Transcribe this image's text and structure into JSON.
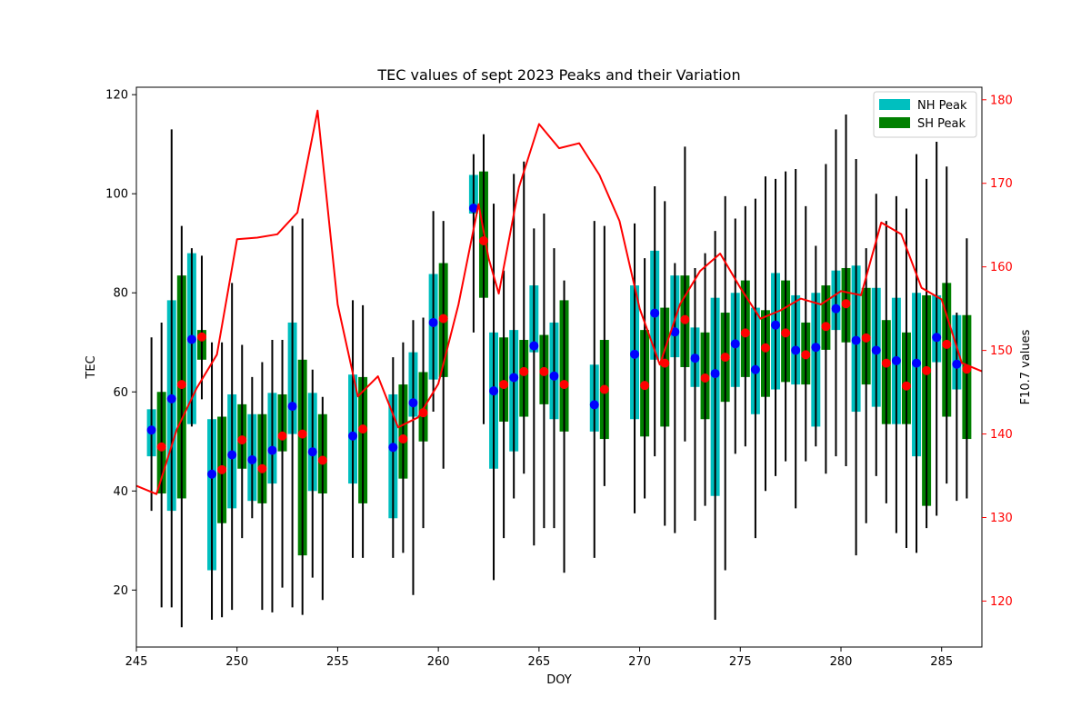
{
  "chart_data": {
    "type": "bar",
    "title": "TEC values of sept 2023 Peaks and their Variation",
    "xlabel": "DOY",
    "ylabel": "TEC",
    "y2label": "F10.7 values",
    "xlim": [
      245,
      287
    ],
    "ylim": [
      8.5,
      121.5
    ],
    "y2lim": [
      114.5,
      181.5
    ],
    "x_ticks": [
      245,
      250,
      255,
      260,
      265,
      270,
      275,
      280,
      285
    ],
    "y_ticks": [
      20,
      40,
      60,
      80,
      100,
      120
    ],
    "y2_ticks": [
      120,
      130,
      140,
      150,
      160,
      170,
      180
    ],
    "legend_position": "upper-right",
    "colors": {
      "nh": "#00bfbf",
      "sh": "#008000",
      "nh_point": "#0000ff",
      "sh_point": "#ff0000",
      "f107": "#ff0000",
      "whisker": "#000000"
    },
    "series": [
      {
        "name": "NH Peak",
        "offset": -0.25,
        "boxes": [
          {
            "x": 246,
            "low": 47,
            "high": 56.5,
            "mean": 52.3,
            "wlow": 36,
            "whigh": 71
          },
          {
            "x": 247,
            "low": 36,
            "high": 78.5,
            "mean": 58.6,
            "wlow": 16.5,
            "whigh": 113
          },
          {
            "x": 248,
            "low": 53.5,
            "high": 88,
            "mean": 70.6,
            "wlow": 53,
            "whigh": 89
          },
          {
            "x": 249,
            "low": 24,
            "high": 54.5,
            "mean": 43.4,
            "wlow": 14,
            "whigh": 70
          },
          {
            "x": 250,
            "low": 36.5,
            "high": 59.5,
            "mean": 47.3,
            "wlow": 16,
            "whigh": 82
          },
          {
            "x": 251,
            "low": 38,
            "high": 55.5,
            "mean": 46.3,
            "wlow": 34.5,
            "whigh": 63
          },
          {
            "x": 252,
            "low": 41.5,
            "high": 59.8,
            "mean": 48.2,
            "wlow": 15.5,
            "whigh": 70.5
          },
          {
            "x": 253,
            "low": 51.5,
            "high": 74,
            "mean": 57.1,
            "wlow": 16.5,
            "whigh": 93.5
          },
          {
            "x": 254,
            "low": 40,
            "high": 59.8,
            "mean": 47.9,
            "wlow": 22.5,
            "whigh": 64.5
          },
          {
            "x": 256,
            "low": 41.5,
            "high": 63.5,
            "mean": 51.1,
            "wlow": 26.5,
            "whigh": 78.5
          },
          {
            "x": 258,
            "low": 34.5,
            "high": 59.5,
            "mean": 48.8,
            "wlow": 26.5,
            "whigh": 67
          },
          {
            "x": 259,
            "low": 55,
            "high": 68,
            "mean": 57.8,
            "wlow": 19,
            "whigh": 74.5
          },
          {
            "x": 260,
            "low": 62.5,
            "high": 83.8,
            "mean": 74,
            "wlow": 56,
            "whigh": 96.5
          },
          {
            "x": 262,
            "low": 96,
            "high": 103.8,
            "mean": 97.1,
            "wlow": 72,
            "whigh": 108
          },
          {
            "x": 263,
            "low": 44.5,
            "high": 72,
            "mean": 60.2,
            "wlow": 22,
            "whigh": 98
          },
          {
            "x": 264,
            "low": 48,
            "high": 72.5,
            "mean": 62.9,
            "wlow": 38.5,
            "whigh": 104
          },
          {
            "x": 265,
            "low": 68,
            "high": 81.5,
            "mean": 69.3,
            "wlow": 29,
            "whigh": 93
          },
          {
            "x": 266,
            "low": 54.5,
            "high": 74,
            "mean": 63.2,
            "wlow": 32.5,
            "whigh": 89
          },
          {
            "x": 268,
            "low": 52,
            "high": 65.5,
            "mean": 57.4,
            "wlow": 26.5,
            "whigh": 94.5
          },
          {
            "x": 270,
            "low": 54.5,
            "high": 81.5,
            "mean": 67.6,
            "wlow": 35.5,
            "whigh": 94
          },
          {
            "x": 271,
            "low": 66.5,
            "high": 88.5,
            "mean": 75.9,
            "wlow": 47,
            "whigh": 101.5
          },
          {
            "x": 272,
            "low": 67,
            "high": 83.5,
            "mean": 72.1,
            "wlow": 31.5,
            "whigh": 86
          },
          {
            "x": 273,
            "low": 61,
            "high": 73,
            "mean": 66.8,
            "wlow": 34,
            "whigh": 85
          },
          {
            "x": 274,
            "low": 39,
            "high": 79,
            "mean": 63.7,
            "wlow": 14,
            "whigh": 92.5
          },
          {
            "x": 275,
            "low": 61,
            "high": 80,
            "mean": 69.7,
            "wlow": 47.5,
            "whigh": 95
          },
          {
            "x": 276,
            "low": 55.5,
            "high": 77,
            "mean": 64.5,
            "wlow": 30.5,
            "whigh": 99
          },
          {
            "x": 277,
            "low": 60.5,
            "high": 84,
            "mean": 73.5,
            "wlow": 43,
            "whigh": 103
          },
          {
            "x": 278,
            "low": 61.5,
            "high": 79.5,
            "mean": 68.4,
            "wlow": 36.5,
            "whigh": 105
          },
          {
            "x": 279,
            "low": 53,
            "high": 80,
            "mean": 69,
            "wlow": 49,
            "whigh": 89.5
          },
          {
            "x": 280,
            "low": 72.5,
            "high": 84.5,
            "mean": 76.8,
            "wlow": 47,
            "whigh": 113
          },
          {
            "x": 281,
            "low": 56,
            "high": 85.5,
            "mean": 70.4,
            "wlow": 27,
            "whigh": 107
          },
          {
            "x": 282,
            "low": 57,
            "high": 81,
            "mean": 68.4,
            "wlow": 43,
            "whigh": 100
          },
          {
            "x": 283,
            "low": 53.5,
            "high": 79,
            "mean": 66.3,
            "wlow": 31.5,
            "whigh": 99.5
          },
          {
            "x": 284,
            "low": 47,
            "high": 80,
            "mean": 65.8,
            "wlow": 27.5,
            "whigh": 108
          },
          {
            "x": 285,
            "low": 66,
            "high": 79.5,
            "mean": 71,
            "wlow": 35,
            "whigh": 110.5
          },
          {
            "x": 286,
            "low": 60.5,
            "high": 75.5,
            "mean": 65.6,
            "wlow": 38,
            "whigh": 76
          }
        ]
      },
      {
        "name": "SH Peak",
        "offset": 0.25,
        "boxes": [
          {
            "x": 246,
            "low": 39.5,
            "high": 60,
            "mean": 48.9,
            "wlow": 16.5,
            "whigh": 74
          },
          {
            "x": 247,
            "low": 38.5,
            "high": 83.5,
            "mean": 61.5,
            "wlow": 12.5,
            "whigh": 93.5
          },
          {
            "x": 248,
            "low": 66.5,
            "high": 72.5,
            "mean": 71.1,
            "wlow": 58.5,
            "whigh": 87.5
          },
          {
            "x": 249,
            "low": 33.5,
            "high": 55,
            "mean": 44.3,
            "wlow": 14.5,
            "whigh": 70
          },
          {
            "x": 250,
            "low": 44.5,
            "high": 57.5,
            "mean": 50.3,
            "wlow": 30.5,
            "whigh": 69.5
          },
          {
            "x": 251,
            "low": 37.5,
            "high": 55.5,
            "mean": 44.5,
            "wlow": 16,
            "whigh": 66
          },
          {
            "x": 252,
            "low": 48,
            "high": 59.5,
            "mean": 51.1,
            "wlow": 20.5,
            "whigh": 70.5
          },
          {
            "x": 253,
            "low": 27,
            "high": 66.5,
            "mean": 51.5,
            "wlow": 15,
            "whigh": 95
          },
          {
            "x": 254,
            "low": 39.5,
            "high": 55.5,
            "mean": 46.2,
            "wlow": 18,
            "whigh": 59
          },
          {
            "x": 256,
            "low": 37.5,
            "high": 63,
            "mean": 52.5,
            "wlow": 26.5,
            "whigh": 77.5
          },
          {
            "x": 258,
            "low": 42.5,
            "high": 61.5,
            "mean": 50.5,
            "wlow": 27.5,
            "whigh": 70
          },
          {
            "x": 259,
            "low": 50,
            "high": 64,
            "mean": 55.8,
            "wlow": 32.5,
            "whigh": 75
          },
          {
            "x": 260,
            "low": 63,
            "high": 86,
            "mean": 74.8,
            "wlow": 44.5,
            "whigh": 94.5
          },
          {
            "x": 262,
            "low": 79,
            "high": 104.5,
            "mean": 90.5,
            "wlow": 53.5,
            "whigh": 112
          },
          {
            "x": 263,
            "low": 54,
            "high": 71,
            "mean": 61.5,
            "wlow": 30.5,
            "whigh": 84.5
          },
          {
            "x": 264,
            "low": 55,
            "high": 70.5,
            "mean": 64.1,
            "wlow": 43.5,
            "whigh": 106.5
          },
          {
            "x": 265,
            "low": 57.5,
            "high": 71.5,
            "mean": 64.1,
            "wlow": 32.5,
            "whigh": 96
          },
          {
            "x": 266,
            "low": 52,
            "high": 78.5,
            "mean": 61.5,
            "wlow": 23.5,
            "whigh": 82.5
          },
          {
            "x": 268,
            "low": 50.5,
            "high": 70.5,
            "mean": 60.5,
            "wlow": 41,
            "whigh": 93.5
          },
          {
            "x": 270,
            "low": 51,
            "high": 72.5,
            "mean": 61.3,
            "wlow": 38.5,
            "whigh": 87
          },
          {
            "x": 271,
            "low": 53,
            "high": 77,
            "mean": 65.8,
            "wlow": 33,
            "whigh": 98.5
          },
          {
            "x": 272,
            "low": 65,
            "high": 83.5,
            "mean": 74.6,
            "wlow": 50,
            "whigh": 109.5
          },
          {
            "x": 273,
            "low": 54.5,
            "high": 72,
            "mean": 62.8,
            "wlow": 37,
            "whigh": 88
          },
          {
            "x": 274,
            "low": 58,
            "high": 76,
            "mean": 67,
            "wlow": 24,
            "whigh": 99.5
          },
          {
            "x": 275,
            "low": 63,
            "high": 82.5,
            "mean": 71.9,
            "wlow": 49,
            "whigh": 97.5
          },
          {
            "x": 276,
            "low": 59,
            "high": 76.5,
            "mean": 68.9,
            "wlow": 40,
            "whigh": 103.5
          },
          {
            "x": 277,
            "low": 62,
            "high": 82.5,
            "mean": 71.9,
            "wlow": 46,
            "whigh": 104.5
          },
          {
            "x": 278,
            "low": 61.5,
            "high": 74,
            "mean": 67.5,
            "wlow": 46,
            "whigh": 97.5
          },
          {
            "x": 279,
            "low": 68.5,
            "high": 81.5,
            "mean": 73.2,
            "wlow": 43.5,
            "whigh": 106
          },
          {
            "x": 280,
            "low": 70,
            "high": 85,
            "mean": 77.8,
            "wlow": 45,
            "whigh": 116
          },
          {
            "x": 281,
            "low": 61.5,
            "high": 81,
            "mean": 70.9,
            "wlow": 33.5,
            "whigh": 89
          },
          {
            "x": 282,
            "low": 53.5,
            "high": 74.5,
            "mean": 65.8,
            "wlow": 37.5,
            "whigh": 94.5
          },
          {
            "x": 283,
            "low": 53.5,
            "high": 72,
            "mean": 61.2,
            "wlow": 28.5,
            "whigh": 97
          },
          {
            "x": 284,
            "low": 37,
            "high": 79.5,
            "mean": 64.3,
            "wlow": 32.5,
            "whigh": 103
          },
          {
            "x": 285,
            "low": 55,
            "high": 82,
            "mean": 69.6,
            "wlow": 41.5,
            "whigh": 105.5
          },
          {
            "x": 286,
            "low": 50.5,
            "high": 75.5,
            "mean": 64.6,
            "wlow": 38.5,
            "whigh": 91
          }
        ]
      }
    ],
    "f107_line": {
      "x": [
        245,
        246,
        247,
        248,
        249,
        250,
        251,
        252,
        253,
        254,
        255,
        256,
        257,
        258,
        259,
        260,
        261,
        262,
        262.5,
        263,
        264,
        265,
        266,
        267,
        268,
        269,
        270,
        271,
        272,
        273,
        274,
        275,
        276,
        277,
        278,
        279,
        280,
        281,
        282,
        283,
        284,
        285,
        286,
        287
      ],
      "y": [
        133.8,
        132.8,
        140.5,
        145.5,
        149.5,
        163.3,
        163.5,
        163.9,
        166.5,
        178.7,
        155.5,
        144.5,
        146.9,
        140.8,
        142.0,
        146.0,
        155.5,
        167.5,
        161.0,
        156.8,
        169.5,
        177.1,
        174.2,
        174.8,
        171.0,
        165.5,
        155.0,
        148.3,
        155.5,
        159.5,
        161.6,
        157.5,
        153.8,
        154.8,
        156.2,
        155.5,
        157.1,
        156.6,
        165.3,
        163.9,
        157.5,
        156.1,
        148.5,
        147.5
      ]
    }
  }
}
